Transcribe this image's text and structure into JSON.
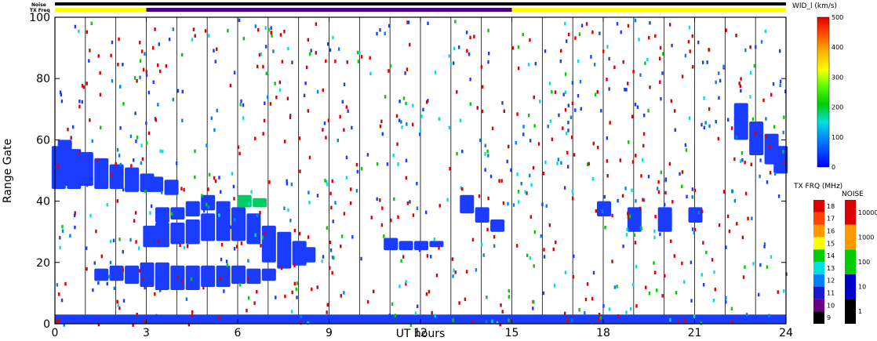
{
  "chart_data": {
    "type": "scatter",
    "title": "",
    "xlabel": "UT hours",
    "ylabel": "Range Gate",
    "xlim": [
      0,
      24
    ],
    "ylim": [
      0,
      100
    ],
    "x_ticks": [
      "0",
      "3",
      "6",
      "9",
      "12",
      "15",
      "18",
      "21",
      "24"
    ],
    "y_ticks": [
      "0",
      "20",
      "40",
      "60",
      "80",
      "100"
    ],
    "status_bars": {
      "noise_label": "Noise",
      "txfreq_label": "TX Freq",
      "txfreq_segments": [
        {
          "start": 0,
          "end": 3,
          "color": "#ffff00"
        },
        {
          "start": 3,
          "end": 15,
          "color": "#4b0082"
        },
        {
          "start": 15,
          "end": 24,
          "color": "#ffff00"
        }
      ]
    },
    "colorbar_width": {
      "title": "WID_l (km/s)",
      "ticks": [
        "0",
        "100",
        "200",
        "300",
        "400",
        "500"
      ],
      "range": [
        0,
        500
      ]
    },
    "colorbar_txfreq": {
      "title": "TX FRQ (MHz)",
      "ticks": [
        "9",
        "10",
        "11",
        "12",
        "13",
        "14",
        "15",
        "16",
        "17",
        "18"
      ],
      "colors": [
        "#000000",
        "#6a0080",
        "#1a1acc",
        "#0080ff",
        "#00e0e0",
        "#00cc00",
        "#ffff00",
        "#ff9900",
        "#ff4400",
        "#dd0000"
      ]
    },
    "colorbar_noise": {
      "title": "NOISE",
      "ticks": [
        "1",
        "10",
        "100",
        "1000",
        "10000"
      ],
      "colors": [
        "#000000",
        "#0000cc",
        "#00cc00",
        "#ff9900",
        "#dd0000"
      ]
    },
    "series": [
      {
        "values": [
          {
            "x": 0.1,
            "y0": 44,
            "y1": 58,
            "c": "#1a3cff"
          },
          {
            "x": 0.3,
            "y0": 45,
            "y1": 60,
            "c": "#1a3cff"
          },
          {
            "x": 0.6,
            "y0": 44,
            "y1": 57,
            "c": "#1a3cff"
          },
          {
            "x": 1.0,
            "y0": 45,
            "y1": 56,
            "c": "#1a3cff"
          },
          {
            "x": 1.5,
            "y0": 44,
            "y1": 54,
            "c": "#1a3cff"
          },
          {
            "x": 2.0,
            "y0": 44,
            "y1": 52,
            "c": "#1a3cff"
          },
          {
            "x": 2.5,
            "y0": 43,
            "y1": 51,
            "c": "#1a3cff"
          },
          {
            "x": 3.0,
            "y0": 43,
            "y1": 49,
            "c": "#1a3cff"
          },
          {
            "x": 3.3,
            "y0": 43,
            "y1": 48,
            "c": "#1a3cff"
          },
          {
            "x": 3.8,
            "y0": 42,
            "y1": 47,
            "c": "#1a3cff"
          },
          {
            "x": 1.5,
            "y0": 14,
            "y1": 18,
            "c": "#1a3cff"
          },
          {
            "x": 2.0,
            "y0": 14,
            "y1": 19,
            "c": "#1a3cff"
          },
          {
            "x": 2.5,
            "y0": 13,
            "y1": 19,
            "c": "#1a3cff"
          },
          {
            "x": 3.0,
            "y0": 12,
            "y1": 20,
            "c": "#1a3cff"
          },
          {
            "x": 3.5,
            "y0": 11,
            "y1": 20,
            "c": "#1a3cff"
          },
          {
            "x": 4.0,
            "y0": 11,
            "y1": 19,
            "c": "#1a3cff"
          },
          {
            "x": 4.5,
            "y0": 11,
            "y1": 19,
            "c": "#1a3cff"
          },
          {
            "x": 5.0,
            "y0": 12,
            "y1": 19,
            "c": "#1a3cff"
          },
          {
            "x": 5.5,
            "y0": 12,
            "y1": 19,
            "c": "#1a3cff"
          },
          {
            "x": 6.0,
            "y0": 13,
            "y1": 19,
            "c": "#1a3cff"
          },
          {
            "x": 6.5,
            "y0": 13,
            "y1": 18,
            "c": "#1a3cff"
          },
          {
            "x": 7.0,
            "y0": 14,
            "y1": 18,
            "c": "#1a3cff"
          },
          {
            "x": 3.1,
            "y0": 25,
            "y1": 32,
            "c": "#1a3cff"
          },
          {
            "x": 3.5,
            "y0": 25,
            "y1": 33,
            "c": "#1a3cff"
          },
          {
            "x": 4.0,
            "y0": 26,
            "y1": 33,
            "c": "#1a3cff"
          },
          {
            "x": 4.5,
            "y0": 26,
            "y1": 34,
            "c": "#1a3cff"
          },
          {
            "x": 5.0,
            "y0": 27,
            "y1": 36,
            "c": "#1a3cff"
          },
          {
            "x": 5.5,
            "y0": 27,
            "y1": 40,
            "c": "#1a3cff"
          },
          {
            "x": 6.0,
            "y0": 27,
            "y1": 38,
            "c": "#1a3cff"
          },
          {
            "x": 6.5,
            "y0": 26,
            "y1": 36,
            "c": "#1a3cff"
          },
          {
            "x": 7.0,
            "y0": 20,
            "y1": 32,
            "c": "#1a3cff"
          },
          {
            "x": 7.5,
            "y0": 18,
            "y1": 30,
            "c": "#1a3cff"
          },
          {
            "x": 8.0,
            "y0": 19,
            "y1": 27,
            "c": "#1a3cff"
          },
          {
            "x": 8.3,
            "y0": 20,
            "y1": 25,
            "c": "#1a3cff"
          },
          {
            "x": 3.5,
            "y0": 33,
            "y1": 38,
            "c": "#1a3cff"
          },
          {
            "x": 4.0,
            "y0": 34,
            "y1": 38,
            "c": "#1a3cff"
          },
          {
            "x": 4.5,
            "y0": 35,
            "y1": 40,
            "c": "#1a3cff"
          },
          {
            "x": 5.0,
            "y0": 37,
            "y1": 42,
            "c": "#1a3cff"
          },
          {
            "x": 6.2,
            "y0": 38,
            "y1": 42,
            "c": "#00cc66"
          },
          {
            "x": 6.7,
            "y0": 38,
            "y1": 41,
            "c": "#00cc66"
          },
          {
            "x": 11.0,
            "y0": 24,
            "y1": 28,
            "c": "#1a3cff"
          },
          {
            "x": 11.5,
            "y0": 24,
            "y1": 27,
            "c": "#1a3cff"
          },
          {
            "x": 12.0,
            "y0": 24,
            "y1": 27,
            "c": "#1a3cff"
          },
          {
            "x": 12.5,
            "y0": 25,
            "y1": 27,
            "c": "#1a3cff"
          },
          {
            "x": 13.5,
            "y0": 36,
            "y1": 42,
            "c": "#1a3cff"
          },
          {
            "x": 14.0,
            "y0": 33,
            "y1": 38,
            "c": "#1a3cff"
          },
          {
            "x": 14.5,
            "y0": 30,
            "y1": 34,
            "c": "#1a3cff"
          },
          {
            "x": 18.0,
            "y0": 35,
            "y1": 40,
            "c": "#1a3cff"
          },
          {
            "x": 19.0,
            "y0": 30,
            "y1": 38,
            "c": "#1a3cff"
          },
          {
            "x": 20.0,
            "y0": 30,
            "y1": 38,
            "c": "#1a3cff"
          },
          {
            "x": 21.0,
            "y0": 33,
            "y1": 38,
            "c": "#1a3cff"
          },
          {
            "x": 22.5,
            "y0": 60,
            "y1": 72,
            "c": "#1a3cff"
          },
          {
            "x": 23.0,
            "y0": 55,
            "y1": 66,
            "c": "#1a3cff"
          },
          {
            "x": 23.5,
            "y0": 52,
            "y1": 62,
            "c": "#1a3cff"
          },
          {
            "x": 23.8,
            "y0": 49,
            "y1": 58,
            "c": "#1a3cff"
          }
        ]
      }
    ]
  }
}
